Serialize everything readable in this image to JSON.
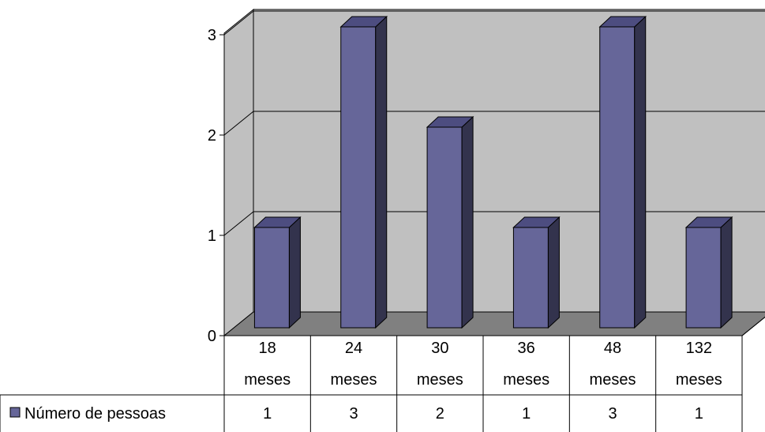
{
  "chart_data": {
    "type": "bar",
    "title": "",
    "xlabel": "",
    "ylabel": "",
    "categories": [
      [
        "18",
        "meses"
      ],
      [
        "24",
        "meses"
      ],
      [
        "30",
        "meses"
      ],
      [
        "36",
        "meses"
      ],
      [
        "48",
        "meses"
      ],
      [
        "132",
        "meses"
      ]
    ],
    "series": [
      {
        "name": "Número de pessoas",
        "values": [
          1,
          3,
          2,
          1,
          3,
          1
        ]
      }
    ],
    "ylim": [
      0,
      3
    ],
    "yticks": [
      "0",
      "1",
      "2",
      "3"
    ],
    "grid": true,
    "view": "3d",
    "legend": "data-table-left",
    "colors": {
      "bar_front": "#666699",
      "bar_side": "#33334d",
      "bar_top": "#4d4d80",
      "back_wall": "#c0c0c0",
      "floor": "#808080",
      "outline": "#000000"
    }
  }
}
